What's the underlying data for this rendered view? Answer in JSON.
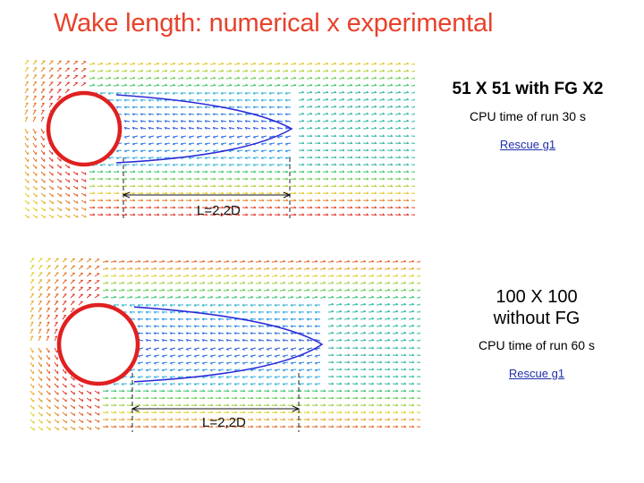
{
  "slide": {
    "title": "Wake length: numerical x experimental"
  },
  "panels": [
    {
      "mesh_label": "51 X 51 with  FG X2",
      "cpu_text": "CPU time of run 30 s",
      "link_text": "Rescue g1",
      "wake_label": "L=2,2D"
    },
    {
      "mesh_label_line1": "100 X 100",
      "mesh_label_line2": "without  FG",
      "cpu_text": "CPU time of run 60 s",
      "link_text": "Rescue g1",
      "wake_label": "L=2,2D"
    }
  ],
  "colors": {
    "title": "#e8412b",
    "cylinder_outline": "#e02020",
    "link": "#1f2fa8",
    "wake_contour": "#2b2bd8"
  }
}
